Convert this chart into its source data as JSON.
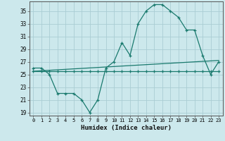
{
  "xlabel": "Humidex (Indice chaleur)",
  "background_color": "#cce8ec",
  "grid_color": "#aacdd4",
  "line_color": "#1a7a6e",
  "xlim": [
    -0.5,
    23.5
  ],
  "ylim": [
    18.5,
    36.5
  ],
  "yticks": [
    19,
    21,
    23,
    25,
    27,
    29,
    31,
    33,
    35
  ],
  "xticks": [
    0,
    1,
    2,
    3,
    4,
    5,
    6,
    7,
    8,
    9,
    10,
    11,
    12,
    13,
    14,
    15,
    16,
    17,
    18,
    19,
    20,
    21,
    22,
    23
  ],
  "line1_x": [
    0,
    1,
    2,
    3,
    4,
    5,
    6,
    7,
    8,
    9,
    10,
    11,
    12,
    13,
    14,
    15,
    16,
    17,
    18,
    19,
    20,
    21,
    22,
    23
  ],
  "line1_y": [
    26,
    26,
    25,
    22,
    22,
    22,
    21,
    19,
    21,
    26,
    27,
    30,
    28,
    33,
    35,
    36,
    36,
    35,
    34,
    32,
    32,
    28,
    25,
    27
  ],
  "line2_x": [
    0,
    1,
    2,
    3,
    4,
    5,
    6,
    7,
    8,
    9,
    10,
    11,
    12,
    13,
    14,
    15,
    16,
    17,
    18,
    19,
    20,
    21,
    22,
    23
  ],
  "line2_y": [
    25.5,
    25.5,
    25.5,
    25.5,
    25.5,
    25.5,
    25.5,
    25.5,
    25.5,
    25.5,
    25.5,
    25.5,
    25.5,
    25.5,
    25.5,
    25.5,
    25.5,
    25.5,
    25.5,
    25.5,
    25.5,
    25.5,
    25.5,
    25.5
  ],
  "line3_x": [
    0,
    23
  ],
  "line3_y": [
    25.5,
    27.2
  ]
}
